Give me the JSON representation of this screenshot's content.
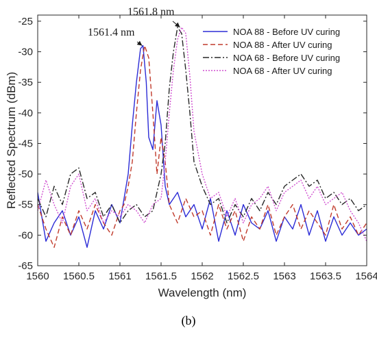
{
  "panel_label": "(b)",
  "chart_data": {
    "type": "line",
    "title": "",
    "xlabel": "Wavelength (nm)",
    "ylabel": "Reflected Spectrum (dBm)",
    "xlim": [
      1560,
      1564
    ],
    "ylim": [
      -65,
      -24
    ],
    "xticks": [
      1560,
      1560.5,
      1561,
      1561.5,
      1562,
      1562.5,
      1563,
      1563.5,
      1564
    ],
    "xtick_labels": [
      "1560",
      "1560.5",
      "1561",
      "1561.5",
      "1562",
      "1562.5",
      "1563",
      "1563.5",
      "1564"
    ],
    "yticks": [
      -25,
      -30,
      -35,
      -40,
      -45,
      -50,
      -55,
      -60,
      -65
    ],
    "ytick_labels": [
      "-25",
      "-30",
      "-35",
      "-40",
      "-45",
      "-50",
      "-55",
      "-60",
      "-65"
    ],
    "grid": false,
    "legend_position": "top-right",
    "annotations": [
      {
        "text": "1561.4 nm",
        "x": 1561.27,
        "y": -29
      },
      {
        "text": "1561.8 nm",
        "x": 1561.73,
        "y": -26
      }
    ],
    "series": [
      {
        "name": "NOA 88 - Before UV curing",
        "color": "#2b2bd6",
        "dash": "solid",
        "x": [
          1560.0,
          1560.1,
          1560.2,
          1560.3,
          1560.4,
          1560.5,
          1560.6,
          1560.7,
          1560.8,
          1560.9,
          1561.0,
          1561.05,
          1561.1,
          1561.15,
          1561.2,
          1561.25,
          1561.28,
          1561.32,
          1561.35,
          1561.4,
          1561.45,
          1561.5,
          1561.55,
          1561.6,
          1561.7,
          1561.8,
          1561.9,
          1562.0,
          1562.1,
          1562.2,
          1562.3,
          1562.4,
          1562.5,
          1562.6,
          1562.7,
          1562.8,
          1562.9,
          1563.0,
          1563.1,
          1563.2,
          1563.3,
          1563.4,
          1563.5,
          1563.6,
          1563.7,
          1563.8,
          1563.9,
          1564.0
        ],
        "y": [
          -53,
          -61,
          -58,
          -56,
          -60,
          -57,
          -62,
          -56,
          -59,
          -55,
          -58,
          -54,
          -50,
          -42,
          -35,
          -29.5,
          -29,
          -35,
          -44,
          -46,
          -38,
          -42,
          -52,
          -55,
          -53,
          -57,
          -55,
          -59,
          -54,
          -61,
          -56,
          -60,
          -55,
          -58,
          -59,
          -56,
          -61,
          -57,
          -59,
          -55,
          -60,
          -56,
          -61,
          -57,
          -60,
          -58,
          -60,
          -59
        ]
      },
      {
        "name": "NOA 88 - After UV curing",
        "color": "#c03a2b",
        "dash": "7,4",
        "x": [
          1560.0,
          1560.1,
          1560.2,
          1560.3,
          1560.4,
          1560.5,
          1560.6,
          1560.7,
          1560.8,
          1560.9,
          1561.0,
          1561.05,
          1561.1,
          1561.15,
          1561.2,
          1561.25,
          1561.3,
          1561.35,
          1561.4,
          1561.45,
          1561.5,
          1561.55,
          1561.6,
          1561.7,
          1561.8,
          1561.9,
          1562.0,
          1562.1,
          1562.2,
          1562.3,
          1562.4,
          1562.5,
          1562.6,
          1562.7,
          1562.8,
          1562.9,
          1563.0,
          1563.1,
          1563.2,
          1563.3,
          1563.4,
          1563.5,
          1563.6,
          1563.7,
          1563.8,
          1563.9,
          1564.0
        ],
        "y": [
          -55,
          -59,
          -62,
          -57,
          -60,
          -56,
          -59,
          -55,
          -58,
          -60,
          -56,
          -55,
          -52,
          -48,
          -40,
          -33,
          -29,
          -31,
          -40,
          -50,
          -44,
          -48,
          -55,
          -58,
          -54,
          -57,
          -56,
          -60,
          -55,
          -59,
          -56,
          -61,
          -57,
          -59,
          -55,
          -60,
          -57,
          -55,
          -59,
          -56,
          -58,
          -60,
          -55,
          -59,
          -57,
          -60,
          -58
        ]
      },
      {
        "name": "NOA 68 - Before UV curing",
        "color": "#262626",
        "dash": "9,3,2,3",
        "x": [
          1560.0,
          1560.1,
          1560.2,
          1560.3,
          1560.4,
          1560.5,
          1560.6,
          1560.7,
          1560.8,
          1560.9,
          1561.0,
          1561.1,
          1561.2,
          1561.3,
          1561.4,
          1561.5,
          1561.55,
          1561.6,
          1561.65,
          1561.7,
          1561.75,
          1561.8,
          1561.85,
          1561.9,
          1562.0,
          1562.1,
          1562.2,
          1562.3,
          1562.4,
          1562.5,
          1562.6,
          1562.7,
          1562.8,
          1562.9,
          1563.0,
          1563.1,
          1563.2,
          1563.3,
          1563.4,
          1563.5,
          1563.6,
          1563.7,
          1563.8,
          1563.9,
          1564.0
        ],
        "y": [
          -54,
          -57,
          -52,
          -55,
          -50,
          -49,
          -54,
          -53,
          -57,
          -55,
          -58,
          -56,
          -55,
          -57,
          -56,
          -50,
          -45,
          -36,
          -30,
          -26,
          -27,
          -33,
          -40,
          -48,
          -52,
          -55,
          -54,
          -58,
          -55,
          -57,
          -54,
          -56,
          -53,
          -55,
          -52,
          -51,
          -50,
          -52,
          -51,
          -54,
          -53,
          -55,
          -54,
          -56,
          -55
        ]
      },
      {
        "name": "NOA 68 - After UV curing",
        "color": "#d04fd0",
        "dash": "2,2",
        "x": [
          1560.0,
          1560.1,
          1560.2,
          1560.3,
          1560.4,
          1560.5,
          1560.6,
          1560.7,
          1560.8,
          1560.9,
          1561.0,
          1561.1,
          1561.2,
          1561.3,
          1561.4,
          1561.5,
          1561.55,
          1561.6,
          1561.65,
          1561.7,
          1561.75,
          1561.8,
          1561.85,
          1561.9,
          1562.0,
          1562.1,
          1562.2,
          1562.3,
          1562.4,
          1562.5,
          1562.6,
          1562.7,
          1562.8,
          1562.9,
          1563.0,
          1563.1,
          1563.2,
          1563.3,
          1563.4,
          1563.5,
          1563.6,
          1563.7,
          1563.8,
          1563.9,
          1564.0
        ],
        "y": [
          -56,
          -51,
          -55,
          -58,
          -52,
          -50,
          -56,
          -54,
          -58,
          -56,
          -57,
          -55,
          -56,
          -58,
          -55,
          -54,
          -48,
          -40,
          -33,
          -28,
          -26,
          -27,
          -34,
          -43,
          -50,
          -54,
          -53,
          -57,
          -54,
          -58,
          -55,
          -54,
          -52,
          -56,
          -53,
          -52,
          -51,
          -54,
          -52,
          -55,
          -54,
          -53,
          -56,
          -58,
          -61
        ]
      }
    ]
  }
}
